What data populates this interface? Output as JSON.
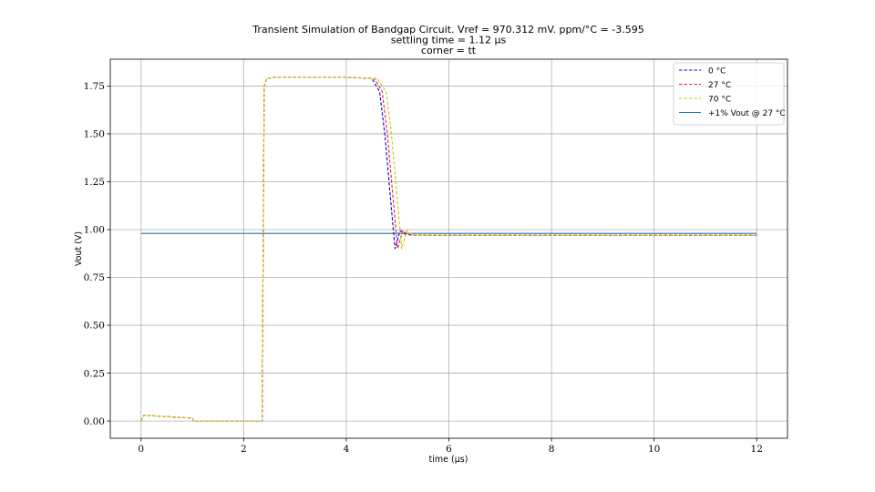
{
  "chart_data": {
    "type": "line",
    "title_lines": [
      "Transient Simulation of Bandgap Circuit. Vref = 970.312 mV. ppm/°C = -3.595",
      "settling time = 1.12 μs",
      "corner = tt"
    ],
    "xlabel": "time (μs)",
    "ylabel": "Vout (V)",
    "xlim": [
      -0.6,
      12.6
    ],
    "ylim": [
      -0.09,
      1.89
    ],
    "xticks": [
      0,
      2,
      4,
      6,
      8,
      10,
      12
    ],
    "xtick_labels": [
      "0",
      "2",
      "4",
      "6",
      "8",
      "10",
      "12"
    ],
    "yticks": [
      0.0,
      0.25,
      0.5,
      0.75,
      1.0,
      1.25,
      1.5,
      1.75
    ],
    "ytick_labels": [
      "0.00",
      "0.25",
      "0.50",
      "0.75",
      "1.00",
      "1.25",
      "1.50",
      "1.75"
    ],
    "grid": true,
    "legend_position": "top-right",
    "series": [
      {
        "name": "0 °C",
        "style": "dashed",
        "color": "#0000cc",
        "x": [
          0,
          0.05,
          1.0,
          1.02,
          2.0,
          2.36,
          2.37,
          2.4,
          2.45,
          2.6,
          3.0,
          4.0,
          4.5,
          4.65,
          4.75,
          4.85,
          4.95,
          5.05,
          5.15,
          5.3,
          6,
          8,
          10,
          12
        ],
        "y": [
          0.0,
          0.03,
          0.015,
          0.0,
          0.0,
          0.0,
          0.5,
          1.75,
          1.79,
          1.795,
          1.795,
          1.795,
          1.79,
          1.72,
          1.5,
          1.2,
          0.9,
          0.995,
          0.975,
          0.971,
          0.97,
          0.97,
          0.97,
          0.97
        ]
      },
      {
        "name": "27 °C",
        "style": "dashed",
        "color": "#e8203a",
        "x": [
          0,
          0.05,
          1.0,
          1.02,
          2.0,
          2.36,
          2.37,
          2.4,
          2.45,
          2.6,
          3.0,
          4.0,
          4.55,
          4.7,
          4.8,
          4.9,
          5.0,
          5.1,
          5.2,
          5.35,
          6,
          8,
          10,
          12
        ],
        "y": [
          0.0,
          0.03,
          0.015,
          0.0,
          0.0,
          0.0,
          0.5,
          1.75,
          1.79,
          1.795,
          1.795,
          1.795,
          1.79,
          1.72,
          1.5,
          1.2,
          0.9,
          0.995,
          0.975,
          0.971,
          0.97,
          0.97,
          0.97,
          0.97
        ]
      },
      {
        "name": "70 °C",
        "style": "dashed",
        "color": "#c8c800",
        "x": [
          0,
          0.05,
          1.0,
          1.02,
          2.0,
          2.36,
          2.37,
          2.4,
          2.45,
          2.6,
          3.0,
          4.0,
          4.6,
          4.78,
          4.88,
          4.98,
          5.08,
          5.18,
          5.28,
          5.45,
          6,
          8,
          10,
          12
        ],
        "y": [
          0.0,
          0.03,
          0.015,
          0.0,
          0.0,
          0.0,
          0.5,
          1.75,
          1.79,
          1.795,
          1.795,
          1.795,
          1.79,
          1.72,
          1.5,
          1.2,
          0.9,
          0.995,
          0.975,
          0.97,
          0.969,
          0.969,
          0.969,
          0.969
        ]
      },
      {
        "name": "+1% Vout @ 27 °C",
        "style": "solid",
        "color": "#1f77b4",
        "x": [
          0,
          12
        ],
        "y": [
          0.98,
          0.98
        ]
      }
    ]
  }
}
